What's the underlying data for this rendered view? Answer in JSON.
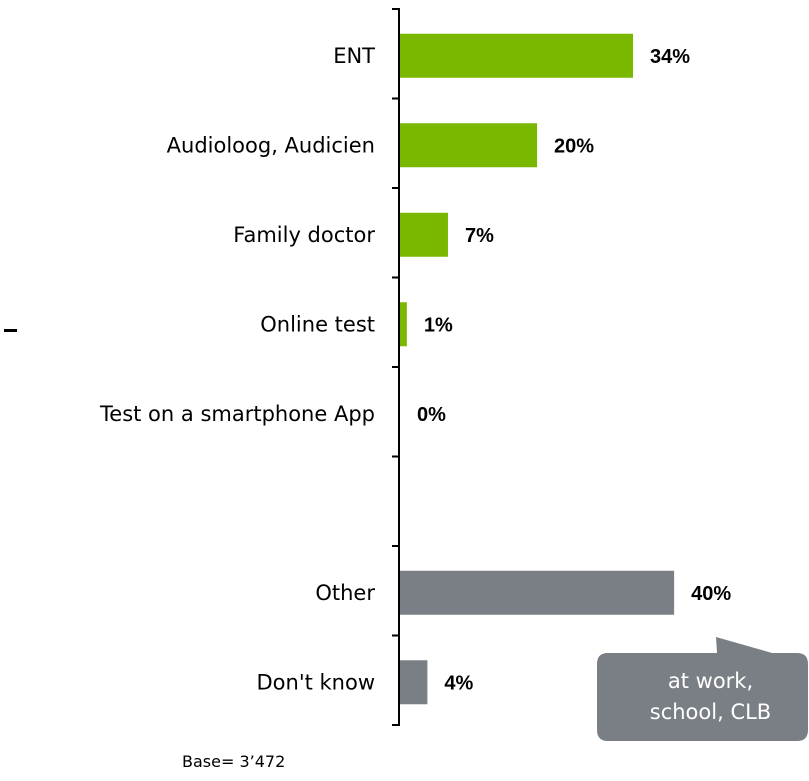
{
  "chart_data": {
    "type": "bar",
    "orientation": "horizontal",
    "categories": [
      "ENT",
      "Audioloog, Audicien",
      "Family doctor",
      "Online test",
      "Test on a smartphone App",
      "",
      "Other",
      "Don't know"
    ],
    "values": [
      34,
      20,
      7,
      1,
      0,
      null,
      40,
      4
    ],
    "value_labels": [
      "34%",
      "20%",
      "7%",
      "1%",
      "0%",
      "",
      "40%",
      "4%"
    ],
    "bar_colors": [
      "#7ab800",
      "#7ab800",
      "#7ab800",
      "#7ab800",
      "#7ab800",
      null,
      "#7a7f85",
      "#7a7f85"
    ],
    "xlim": [
      0,
      50
    ],
    "unit": "%",
    "grid": false,
    "callout": {
      "lines": [
        "at work,",
        "school, CLB"
      ],
      "color": "#7a7f85",
      "points_to": "Other"
    }
  },
  "note": "Base= 3’472"
}
